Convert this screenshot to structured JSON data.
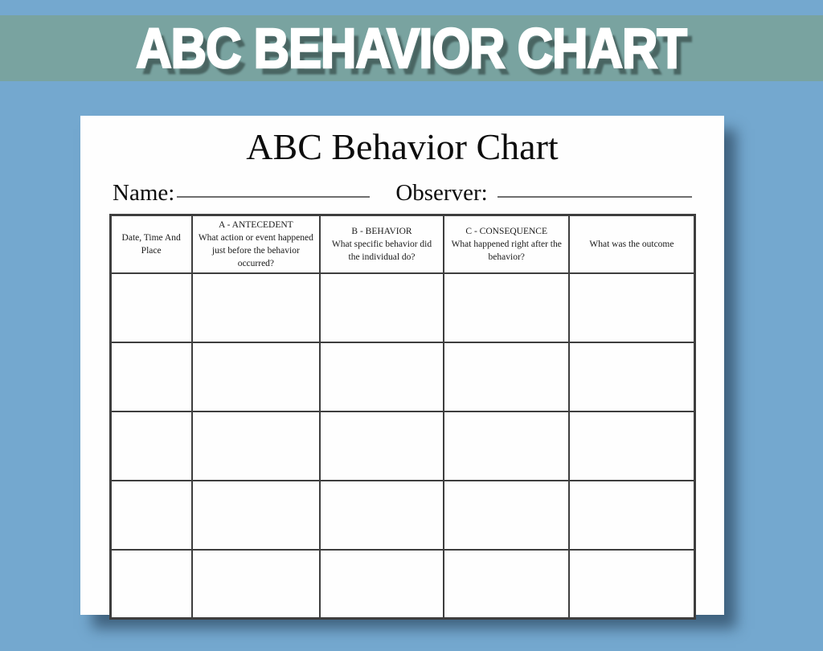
{
  "banner": {
    "title": "ABC BEHAVIOR CHART"
  },
  "document": {
    "title": "ABC Behavior Chart",
    "name_label": "Name:",
    "observer_label": "Observer:",
    "name_value": "",
    "observer_value": "",
    "table": {
      "columns": [
        {
          "title": "Date, Time And Place",
          "description": ""
        },
        {
          "title": "A - ANTECEDENT",
          "description": "What action or event happened just before the behavior occurred?"
        },
        {
          "title": "B - BEHAVIOR",
          "description": "What specific behavior did the individual do?"
        },
        {
          "title": "C - CONSEQUENCE",
          "description": "What happened right after the behavior?"
        },
        {
          "title": "What was the outcome",
          "description": ""
        }
      ],
      "empty_row_count": 5,
      "cell_values": []
    }
  },
  "colors": {
    "background_blue": "#74a8cf",
    "banner_teal": "#79a3a0",
    "banner_text": "#ffffff",
    "banner_text_shadow": "#3a504e",
    "paper_white": "#fefefe",
    "paper_shadow": "#162a3e",
    "table_border": "#3e3e3e",
    "field_line_gray": "#6e6e6e",
    "text_black": "#0d0d0d"
  }
}
